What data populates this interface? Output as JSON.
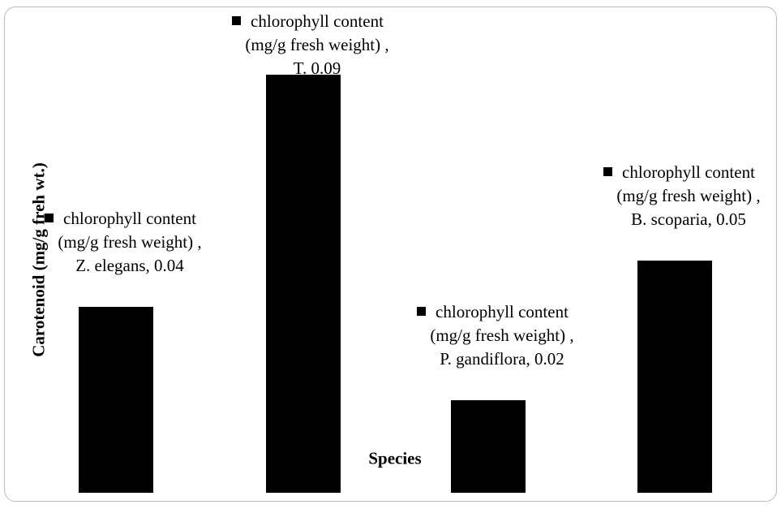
{
  "chart_data": {
    "type": "bar",
    "values": [
      0.04,
      0.09,
      0.02,
      0.05
    ],
    "value_labels": [
      "chlorophyll content (mg/g fresh weight) , Z. elegans, 0.04",
      "chlorophyll content (mg/g fresh weight) , T. 0.09",
      "chlorophyll content (mg/g fresh weight) , P. gandiflora, 0.02",
      "chlorophyll content (mg/g fresh weight) , B. scoparia, 0.05"
    ],
    "color": "#000000",
    "ylabel": "Carotenoid (mg/g freh wt.)",
    "xlabel": "Species",
    "ylim": [
      0,
      0.1
    ]
  }
}
